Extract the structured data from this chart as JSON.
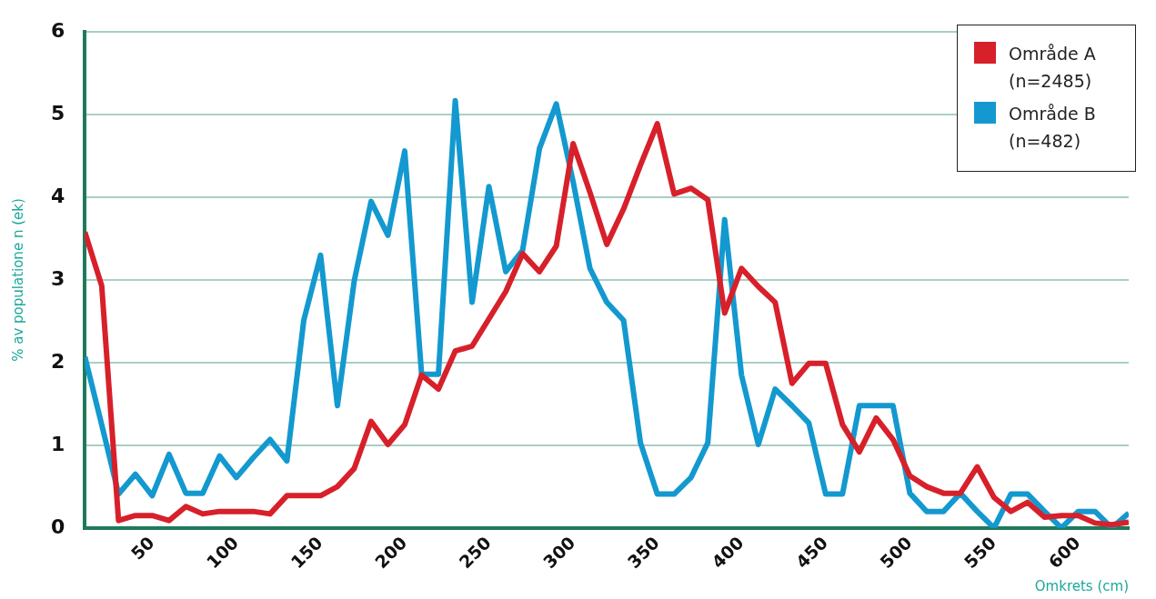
{
  "chart_data": {
    "type": "line",
    "xlabel": "Omkrets (cm)",
    "ylabel": "% av populatione n (ek)",
    "x": [
      10,
      20,
      30,
      40,
      50,
      60,
      70,
      80,
      90,
      100,
      110,
      120,
      130,
      140,
      150,
      160,
      170,
      180,
      190,
      200,
      210,
      220,
      230,
      240,
      250,
      260,
      270,
      280,
      290,
      300,
      310,
      320,
      330,
      340,
      350,
      360,
      370,
      380,
      390,
      400,
      410,
      420,
      430,
      440,
      450,
      460,
      470,
      480,
      490,
      500,
      510,
      520,
      530,
      540,
      550,
      560,
      570,
      580,
      590,
      600,
      610,
      620,
      630
    ],
    "series": [
      {
        "name": "Område A (n=2485)",
        "color": "#d7202a",
        "values": [
          3.58,
          2.93,
          0.09,
          0.15,
          0.15,
          0.09,
          0.26,
          0.17,
          0.2,
          0.2,
          0.2,
          0.17,
          0.39,
          0.39,
          0.39,
          0.5,
          0.72,
          1.29,
          1.01,
          1.25,
          1.85,
          1.68,
          2.14,
          2.2,
          2.53,
          2.86,
          3.32,
          3.1,
          3.41,
          4.65,
          4.06,
          3.43,
          3.86,
          4.39,
          4.89,
          4.04,
          4.11,
          3.97,
          2.6,
          3.14,
          2.92,
          2.73,
          1.75,
          1.99,
          1.99,
          1.25,
          0.92,
          1.33,
          1.07,
          0.63,
          0.5,
          0.42,
          0.42,
          0.74,
          0.37,
          0.2,
          0.31,
          0.13,
          0.15,
          0.15,
          0.06,
          0.04,
          0.07
        ]
      },
      {
        "name": "Område B (n=482)",
        "color": "#1399cf",
        "values": [
          2.07,
          1.25,
          0.41,
          0.65,
          0.39,
          0.89,
          0.42,
          0.42,
          0.87,
          0.61,
          0.85,
          1.07,
          0.81,
          2.51,
          3.3,
          1.48,
          2.99,
          3.95,
          3.54,
          4.56,
          1.86,
          1.86,
          5.17,
          2.73,
          4.13,
          3.1,
          3.36,
          4.59,
          5.13,
          4.19,
          3.14,
          2.73,
          2.51,
          1.03,
          0.41,
          0.41,
          0.61,
          1.03,
          3.73,
          1.85,
          1.01,
          1.68,
          1.48,
          1.27,
          0.41,
          0.41,
          1.48,
          1.48,
          1.48,
          0.42,
          0.2,
          0.2,
          0.42,
          0.2,
          0,
          0.41,
          0.41,
          0.2,
          0,
          0.2,
          0.2,
          0,
          0.18
        ]
      }
    ],
    "xlim": [
      10,
      630
    ],
    "xticks": [
      50,
      100,
      150,
      200,
      250,
      300,
      350,
      400,
      450,
      500,
      550,
      600
    ],
    "ylim": [
      0,
      6
    ],
    "yticks": [
      0,
      1,
      2,
      3,
      4,
      5,
      6
    ],
    "grid": "y",
    "legend": "top right",
    "marker": "none",
    "line_style": "solid"
  }
}
